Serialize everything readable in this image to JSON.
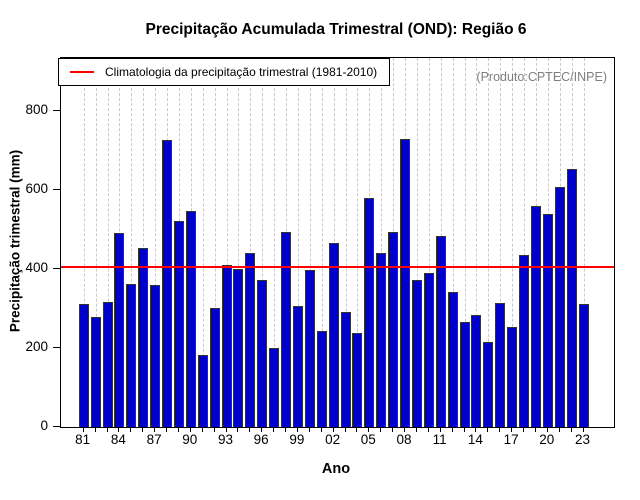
{
  "title": "Precipitação Acumulada Trimestral (OND): Região 6",
  "source_note": "(Produto:CPTEC/INPE)",
  "legend": {
    "label": "Climatologia da precipitação trimestral (1981-2010)",
    "line_color": "#ff0000"
  },
  "axes": {
    "xlabel": "Ano",
    "ylabel": "Precipitação trimestral (mm)"
  },
  "chart_data": {
    "type": "bar",
    "title": "Precipitação Acumulada Trimestral (OND): Região 6",
    "xlabel": "Ano",
    "ylabel": "Precipitação trimestral (mm)",
    "categories": [
      1981,
      1982,
      1983,
      1984,
      1985,
      1986,
      1987,
      1988,
      1989,
      1990,
      1991,
      1992,
      1993,
      1994,
      1995,
      1996,
      1997,
      1998,
      1999,
      2000,
      2001,
      2002,
      2003,
      2004,
      2005,
      2006,
      2007,
      2008,
      2009,
      2010,
      2011,
      2012,
      2013,
      2014,
      2015,
      2016,
      2017,
      2018,
      2019,
      2020,
      2021,
      2022,
      2023
    ],
    "values": [
      312,
      277,
      317,
      491,
      361,
      453,
      359,
      725,
      520,
      546,
      181,
      301,
      410,
      399,
      440,
      372,
      200,
      493,
      305,
      398,
      243,
      465,
      292,
      237,
      580,
      439,
      493,
      728,
      371,
      390,
      483,
      341,
      266,
      284,
      215,
      313,
      254,
      436,
      559,
      539,
      608,
      652,
      311
    ],
    "x_tick_labels": [
      "81",
      "84",
      "87",
      "90",
      "93",
      "96",
      "99",
      "02",
      "05",
      "08",
      "11",
      "14",
      "17",
      "20",
      "23"
    ],
    "x_tick_every": 3,
    "yticks": [
      0,
      200,
      400,
      600,
      800
    ],
    "ylim": [
      0,
      933
    ],
    "climatology": {
      "value": 404,
      "label": "Climatologia da precipitação trimestral (1981-2010)",
      "color": "#ff0000"
    },
    "bar_color": "#0000cd",
    "bar_border_color": "#333333",
    "grid": "vertical-dashed-per-year",
    "legend_position": "top-left"
  }
}
